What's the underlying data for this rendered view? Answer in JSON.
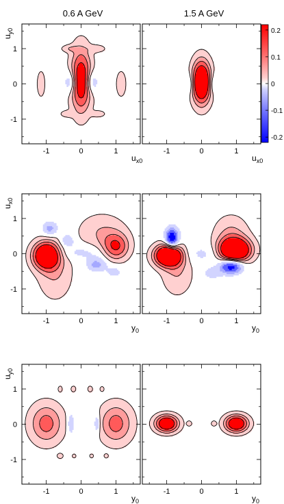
{
  "column_titles": [
    "0.6 A GeV",
    "1.5 A GeV"
  ],
  "colorbar": {
    "ticks": [
      "0.2",
      "0.1",
      "0",
      "-0.1",
      "-0.2"
    ],
    "tick_values": [
      0.2,
      0.1,
      0,
      -0.1,
      -0.2
    ],
    "range": [
      -0.22,
      0.22
    ],
    "colors": {
      "red_strong": "#ff0000",
      "red_mid": "#ff5a5a",
      "red_light": "#ff9c9c",
      "red_faint": "#ffd0d0",
      "blue_faint": "#d2d4ff",
      "blue_light": "#a5a8ff",
      "blue_mid": "#5c60ff",
      "blue_strong": "#0000ff"
    }
  },
  "rows": [
    {
      "ylabel": "u",
      "ylabel_sub": "y0",
      "xlabel_left": "u",
      "xlabel_left_sub": "x0",
      "xlabel_right": "u",
      "xlabel_right_sub": "x0"
    },
    {
      "ylabel": "u",
      "ylabel_sub": "x0",
      "xlabel_left": "y",
      "xlabel_left_sub": "0",
      "xlabel_right": "y",
      "xlabel_right_sub": "0"
    },
    {
      "ylabel": "u",
      "ylabel_sub": "y0",
      "xlabel_left": "y",
      "xlabel_left_sub": "0",
      "xlabel_right": "y",
      "xlabel_right_sub": "0"
    }
  ],
  "axes_ticks": {
    "x": [
      "-1",
      "0",
      "1"
    ],
    "y": [
      "1",
      "0",
      "-1"
    ]
  },
  "chart_data": [
    {
      "type": "heatmap",
      "panel": "row1-left",
      "column": "0.6 A GeV",
      "xlim": [
        -1.7,
        1.7
      ],
      "ylim": [
        -1.7,
        1.7
      ],
      "blobs": [
        {
          "x": 0,
          "y": 0.1,
          "sx": 0.2,
          "sy": 0.58,
          "amp": 0.22
        },
        {
          "x": -0.3,
          "y": 0.05,
          "sx": 0.13,
          "sy": 0.22,
          "amp": -0.09
        },
        {
          "x": 0.3,
          "y": 0.05,
          "sx": 0.13,
          "sy": 0.22,
          "amp": -0.09
        },
        {
          "x": -1.15,
          "y": 0,
          "sx": 0.08,
          "sy": 0.26,
          "amp": 0.05
        },
        {
          "x": 1.15,
          "y": 0,
          "sx": 0.1,
          "sy": 0.26,
          "amp": 0.05
        },
        {
          "x": -0.32,
          "y": 1,
          "sx": 0.17,
          "sy": 0.07,
          "amp": 0.05
        },
        {
          "x": 0.45,
          "y": 1,
          "sx": 0.17,
          "sy": 0.07,
          "amp": 0.05
        },
        {
          "x": -0.4,
          "y": -0.85,
          "sx": 0.13,
          "sy": 0.06,
          "amp": 0.05
        },
        {
          "x": 0.5,
          "y": -0.85,
          "sx": 0.13,
          "sy": 0.06,
          "amp": 0.05
        }
      ]
    },
    {
      "type": "heatmap",
      "panel": "row1-right",
      "column": "1.5 A GeV",
      "xlim": [
        -1.7,
        1.7
      ],
      "ylim": [
        -1.7,
        1.7
      ],
      "blobs": [
        {
          "x": 0,
          "y": 0.05,
          "sx": 0.18,
          "sy": 0.4,
          "amp": 0.3
        },
        {
          "x": -0.35,
          "y": 0,
          "sx": 0.1,
          "sy": 0.2,
          "amp": -0.06
        },
        {
          "x": 0.35,
          "y": 0,
          "sx": 0.1,
          "sy": 0.2,
          "amp": -0.06
        }
      ]
    },
    {
      "type": "heatmap",
      "panel": "row2-left",
      "column": "0.6 A GeV",
      "xlim": [
        -1.7,
        1.7
      ],
      "ylim": [
        -1.7,
        1.7
      ],
      "blobs": [
        {
          "x": -1,
          "y": -0.05,
          "sx": 0.25,
          "sy": 0.25,
          "amp": 0.3
        },
        {
          "x": -0.75,
          "y": -0.55,
          "sx": 0.33,
          "sy": 0.5,
          "amp": 0.06
        },
        {
          "x": 1,
          "y": 0.2,
          "sx": 0.25,
          "sy": 0.25,
          "amp": 0.15
        },
        {
          "x": 0.6,
          "y": 0.6,
          "sx": 0.45,
          "sy": 0.35,
          "amp": 0.06
        },
        {
          "x": -0.9,
          "y": 0.72,
          "sx": 0.15,
          "sy": 0.14,
          "amp": -0.09
        },
        {
          "x": -0.4,
          "y": 0.38,
          "sx": 0.13,
          "sy": 0.12,
          "amp": -0.08
        },
        {
          "x": 0.45,
          "y": -0.3,
          "sx": 0.2,
          "sy": 0.14,
          "amp": -0.09
        },
        {
          "x": 0.95,
          "y": -0.5,
          "sx": 0.15,
          "sy": 0.12,
          "amp": -0.05
        },
        {
          "x": 0,
          "y": 0.05,
          "sx": 0.5,
          "sy": 0.15,
          "amp": -0.045
        }
      ]
    },
    {
      "type": "heatmap",
      "panel": "row2-right",
      "column": "1.5 A GeV",
      "xlim": [
        -1.7,
        1.7
      ],
      "ylim": [
        -1.7,
        1.7
      ],
      "blobs": [
        {
          "x": -0.95,
          "y": -0.05,
          "sx": 0.26,
          "sy": 0.2,
          "amp": 0.35
        },
        {
          "x": -0.7,
          "y": -0.5,
          "sx": 0.3,
          "sy": 0.45,
          "amp": 0.06
        },
        {
          "x": 0.95,
          "y": 0.1,
          "sx": 0.3,
          "sy": 0.22,
          "amp": 0.34
        },
        {
          "x": 0.85,
          "y": 0.5,
          "sx": 0.33,
          "sy": 0.38,
          "amp": 0.07
        },
        {
          "x": -0.85,
          "y": 0.45,
          "sx": 0.13,
          "sy": 0.2,
          "amp": -0.22
        },
        {
          "x": 0.85,
          "y": -0.35,
          "sx": 0.22,
          "sy": 0.14,
          "amp": -0.22
        },
        {
          "x": 0,
          "y": 0,
          "sx": 0.55,
          "sy": 0.2,
          "amp": -0.04
        },
        {
          "x": 0.3,
          "y": -0.55,
          "sx": 0.2,
          "sy": 0.12,
          "amp": -0.05
        }
      ]
    },
    {
      "type": "heatmap",
      "panel": "row3-left",
      "column": "0.6 A GeV",
      "xlim": [
        -1.7,
        1.7
      ],
      "ylim": [
        -1.7,
        1.7
      ],
      "blobs": [
        {
          "x": -1,
          "y": 0.02,
          "sx": 0.32,
          "sy": 0.38,
          "amp": 0.12
        },
        {
          "x": 1,
          "y": 0.02,
          "sx": 0.32,
          "sy": 0.38,
          "amp": 0.12
        },
        {
          "x": -0.3,
          "y": 0.02,
          "sx": 0.06,
          "sy": 0.2,
          "amp": -0.08
        },
        {
          "x": 0.45,
          "y": 0.02,
          "sx": 0.06,
          "sy": 0.2,
          "amp": -0.08
        },
        {
          "x": -0.6,
          "y": 1.0,
          "sx": 0.04,
          "sy": 0.06,
          "amp": 0.05
        },
        {
          "x": -0.22,
          "y": 1.0,
          "sx": 0.05,
          "sy": 0.06,
          "amp": 0.05
        },
        {
          "x": 0.26,
          "y": 1.0,
          "sx": 0.05,
          "sy": 0.06,
          "amp": 0.05
        },
        {
          "x": 0.6,
          "y": 1.0,
          "sx": 0.04,
          "sy": 0.05,
          "amp": 0.05
        },
        {
          "x": -0.6,
          "y": -0.9,
          "sx": 0.06,
          "sy": 0.05,
          "amp": 0.05
        },
        {
          "x": -0.2,
          "y": -0.9,
          "sx": 0.04,
          "sy": 0.04,
          "amp": 0.05
        },
        {
          "x": 0.3,
          "y": -0.9,
          "sx": 0.04,
          "sy": 0.04,
          "amp": 0.05
        },
        {
          "x": 0.72,
          "y": -0.9,
          "sx": 0.04,
          "sy": 0.04,
          "amp": 0.05
        }
      ]
    },
    {
      "type": "heatmap",
      "panel": "row3-right",
      "column": "1.5 A GeV",
      "xlim": [
        -1.7,
        1.7
      ],
      "ylim": [
        -1.7,
        1.7
      ],
      "blobs": [
        {
          "x": -1,
          "y": 0.02,
          "sx": 0.22,
          "sy": 0.16,
          "amp": 0.25
        },
        {
          "x": 1,
          "y": 0.02,
          "sx": 0.22,
          "sy": 0.16,
          "amp": 0.25
        },
        {
          "x": -0.35,
          "y": 0.02,
          "sx": 0.05,
          "sy": 0.05,
          "amp": 0.05
        },
        {
          "x": 0.35,
          "y": 0.02,
          "sx": 0.05,
          "sy": 0.05,
          "amp": 0.05
        }
      ]
    }
  ]
}
